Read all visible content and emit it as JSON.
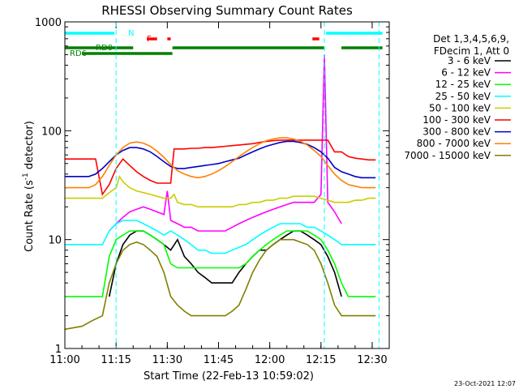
{
  "chart_data": {
    "type": "line",
    "title": "RHESSI Observing Summary Count Rates",
    "xlabel": "Start Time (22-Feb-13 10:59:02)",
    "ylabel_prefix": "Count Rate (s",
    "ylabel_sup": "-1",
    "ylabel_suffix": " detector",
    "ylabel_end": ")",
    "y_scale": "log",
    "ylim": [
      1,
      1000
    ],
    "y_ticks": [
      {
        "value": 1,
        "label": "1"
      },
      {
        "value": 10,
        "label": "10"
      },
      {
        "value": 100,
        "label": "100"
      },
      {
        "value": 1000,
        "label": "1000"
      }
    ],
    "xlim_minutes": [
      0,
      95
    ],
    "x_ticks": [
      {
        "minute": 0,
        "label": "11:00"
      },
      {
        "minute": 15,
        "label": "11:15"
      },
      {
        "minute": 30,
        "label": "11:30"
      },
      {
        "minute": 45,
        "label": "11:45"
      },
      {
        "minute": 60,
        "label": "12:00"
      },
      {
        "minute": 75,
        "label": "12:15"
      },
      {
        "minute": 90,
        "label": "12:30"
      }
    ],
    "legend_title": [
      "Det 1,3,4,5,6,9,",
      "FDecim 1, Att 0"
    ],
    "legend_position": "right",
    "series": [
      {
        "name": "3 - 6 keV",
        "color": "#000000",
        "x": [
          5,
          8,
          11,
          13,
          15,
          17,
          19,
          21,
          23,
          25,
          27,
          29,
          31,
          33,
          35,
          37,
          39,
          41,
          43,
          45,
          47,
          49,
          51,
          53,
          55,
          57,
          59,
          61,
          63,
          65,
          67,
          69,
          71,
          73,
          75,
          77,
          79,
          81
        ],
        "y": [
          null,
          null,
          null,
          3,
          6,
          9,
          11,
          12,
          12,
          11,
          10,
          9,
          8,
          10,
          7,
          6,
          5,
          4.5,
          4,
          4,
          4,
          4,
          5,
          6,
          7,
          8,
          8,
          9,
          10,
          11,
          12,
          12,
          11,
          10,
          9,
          7,
          5,
          3
        ]
      },
      {
        "name": "6 - 12 keV",
        "color": "#ff00ff",
        "x": [
          5,
          8,
          11,
          13,
          15,
          17,
          19,
          21,
          23,
          25,
          27,
          29,
          30,
          31,
          33,
          35,
          37,
          39,
          41,
          43,
          45,
          47,
          49,
          51,
          53,
          55,
          57,
          59,
          61,
          63,
          65,
          67,
          69,
          71,
          73,
          75,
          76,
          77,
          79,
          81
        ],
        "y": [
          null,
          null,
          null,
          12,
          14,
          16,
          18,
          19,
          20,
          19,
          18,
          17,
          28,
          15,
          14,
          13,
          13,
          12,
          12,
          12,
          12,
          12,
          13,
          14,
          15,
          16,
          17,
          18,
          19,
          20,
          21,
          22,
          22,
          22,
          22,
          26,
          500,
          22,
          18,
          14
        ]
      },
      {
        "name": "12 - 25 keV",
        "color": "#00ff00",
        "x": [
          0,
          5,
          8,
          11,
          13,
          15,
          17,
          19,
          21,
          23,
          25,
          27,
          29,
          31,
          33,
          35,
          37,
          39,
          41,
          43,
          45,
          47,
          49,
          51,
          53,
          55,
          57,
          59,
          61,
          63,
          65,
          67,
          69,
          71,
          73,
          75,
          77,
          79,
          81,
          83,
          85,
          87,
          89,
          91
        ],
        "y": [
          3,
          3,
          3,
          3,
          7,
          10,
          11,
          12,
          12,
          12,
          11,
          10,
          9,
          6,
          5.5,
          5.5,
          5.5,
          5.5,
          5.5,
          5.5,
          5.5,
          5.5,
          5.5,
          5.5,
          6,
          7,
          8,
          9,
          10,
          11,
          12,
          12,
          12,
          12,
          11,
          10,
          8,
          6,
          4,
          3,
          3,
          3,
          3,
          3
        ]
      },
      {
        "name": "25 - 50 keV",
        "color": "#00ffff",
        "x": [
          0,
          5,
          8,
          11,
          13,
          15,
          17,
          19,
          21,
          23,
          25,
          27,
          29,
          31,
          33,
          35,
          37,
          39,
          41,
          43,
          45,
          47,
          49,
          51,
          53,
          55,
          57,
          59,
          61,
          63,
          65,
          67,
          69,
          71,
          73,
          75,
          77,
          79,
          81,
          83,
          85,
          87,
          89,
          91
        ],
        "y": [
          9,
          9,
          9,
          9,
          12,
          14,
          15,
          15,
          15,
          14,
          13,
          12,
          11,
          12,
          11,
          10,
          9,
          8,
          8,
          7.5,
          7.5,
          7.5,
          8,
          8.5,
          9,
          10,
          11,
          12,
          13,
          14,
          14,
          14,
          14,
          13,
          13,
          12,
          11,
          10,
          9,
          9,
          9,
          9,
          9,
          9
        ]
      },
      {
        "name": "50 - 100 keV",
        "color": "#cccc00",
        "x": [
          0,
          5,
          8,
          11,
          13,
          15,
          16,
          17,
          19,
          21,
          23,
          25,
          27,
          29,
          31,
          32,
          33,
          35,
          37,
          39,
          41,
          43,
          45,
          47,
          49,
          51,
          53,
          55,
          57,
          59,
          61,
          63,
          65,
          67,
          69,
          71,
          73,
          75,
          77,
          79,
          81,
          83,
          85,
          87,
          89,
          91
        ],
        "y": [
          24,
          24,
          24,
          24,
          27,
          30,
          38,
          34,
          30,
          28,
          27,
          26,
          25,
          24,
          24,
          26,
          22,
          21,
          21,
          20,
          20,
          20,
          20,
          20,
          20,
          21,
          21,
          22,
          22,
          23,
          23,
          24,
          24,
          25,
          25,
          25,
          25,
          24,
          23,
          22,
          22,
          22,
          23,
          23,
          24,
          24
        ]
      },
      {
        "name": "100 - 300 keV",
        "color": "#ff0000",
        "x": [
          0,
          5,
          8,
          9,
          11,
          13,
          15,
          17,
          19,
          21,
          23,
          25,
          27,
          29,
          31,
          32,
          33,
          35,
          37,
          39,
          41,
          43,
          45,
          47,
          49,
          51,
          53,
          55,
          57,
          59,
          61,
          63,
          65,
          67,
          69,
          71,
          73,
          75,
          77,
          79,
          81,
          83,
          85,
          87,
          89,
          91
        ],
        "y": [
          55,
          55,
          55,
          55,
          26,
          32,
          45,
          55,
          48,
          42,
          38,
          35,
          33,
          33,
          33,
          68,
          68,
          68,
          69,
          69,
          70,
          70,
          71,
          72,
          73,
          74,
          75,
          76,
          78,
          80,
          81,
          82,
          82,
          82,
          82,
          82,
          82,
          82,
          82,
          64,
          64,
          58,
          56,
          55,
          54,
          54
        ]
      },
      {
        "name": "300 - 800 keV",
        "color": "#0000cc",
        "x": [
          0,
          5,
          7,
          9,
          11,
          13,
          15,
          17,
          19,
          21,
          23,
          25,
          27,
          29,
          31,
          33,
          35,
          37,
          39,
          41,
          43,
          45,
          47,
          49,
          51,
          53,
          55,
          57,
          59,
          61,
          63,
          65,
          67,
          69,
          71,
          73,
          75,
          77,
          79,
          81,
          83,
          85,
          87,
          89,
          91
        ],
        "y": [
          38,
          38,
          38,
          40,
          45,
          52,
          60,
          66,
          70,
          70,
          68,
          64,
          58,
          52,
          47,
          45,
          45,
          46,
          47,
          48,
          49,
          50,
          52,
          54,
          56,
          60,
          64,
          68,
          72,
          75,
          78,
          80,
          80,
          78,
          75,
          70,
          64,
          56,
          46,
          42,
          40,
          38,
          37,
          37,
          37
        ]
      },
      {
        "name": "800 - 7000 keV",
        "color": "#ff8000",
        "x": [
          0,
          5,
          7,
          9,
          11,
          13,
          15,
          17,
          19,
          21,
          23,
          25,
          27,
          29,
          31,
          33,
          35,
          37,
          39,
          41,
          43,
          45,
          47,
          49,
          51,
          53,
          55,
          57,
          59,
          61,
          63,
          65,
          67,
          69,
          71,
          73,
          75,
          77,
          79,
          81,
          83,
          85,
          87,
          89,
          91
        ],
        "y": [
          30,
          30,
          30,
          32,
          38,
          48,
          60,
          70,
          77,
          79,
          77,
          72,
          65,
          57,
          49,
          43,
          40,
          38,
          37,
          38,
          40,
          43,
          47,
          52,
          58,
          64,
          70,
          76,
          81,
          84,
          86,
          86,
          84,
          80,
          74,
          66,
          58,
          48,
          40,
          35,
          32,
          31,
          30,
          30,
          30
        ]
      },
      {
        "name": "7000 - 15000 keV",
        "color": "#808000",
        "x": [
          0,
          5,
          8,
          11,
          13,
          15,
          17,
          19,
          21,
          23,
          25,
          27,
          29,
          31,
          33,
          35,
          37,
          39,
          41,
          43,
          45,
          47,
          49,
          51,
          53,
          55,
          57,
          59,
          61,
          63,
          65,
          67,
          69,
          71,
          73,
          75,
          77,
          79,
          81,
          83,
          85,
          87,
          89,
          91
        ],
        "y": [
          1.5,
          1.6,
          1.8,
          2,
          4,
          6,
          8,
          9,
          9.5,
          9,
          8,
          7,
          5,
          3,
          2.5,
          2.2,
          2,
          2,
          2,
          2,
          2,
          2,
          2.2,
          2.5,
          3.5,
          5,
          6.5,
          8,
          9,
          10,
          10,
          10,
          9.5,
          9,
          8,
          6,
          4,
          2.5,
          2,
          2,
          2,
          2,
          2,
          2
        ]
      }
    ],
    "state_bars": [
      {
        "label": "N",
        "color": "#00ffff",
        "segments": [
          [
            0,
            14.5
          ],
          [
            76.5,
            93
          ]
        ]
      },
      {
        "label": "F",
        "color": "#ff0000",
        "segments": [
          [
            24,
            27
          ],
          [
            30,
            31
          ],
          [
            72.5,
            74.5
          ]
        ]
      },
      {
        "label": "RD0",
        "color": "#008000",
        "segments": [
          [
            0,
            20
          ],
          [
            31.5,
            57
          ],
          [
            57,
            76
          ],
          [
            81,
            93
          ]
        ]
      },
      {
        "label": "RD6",
        "color": "#008000",
        "segments": [
          [
            5,
            31.5
          ]
        ]
      }
    ],
    "saa_markers_minutes": [
      15,
      76,
      92
    ],
    "footer_date": "23-Oct-2021 12:07"
  }
}
